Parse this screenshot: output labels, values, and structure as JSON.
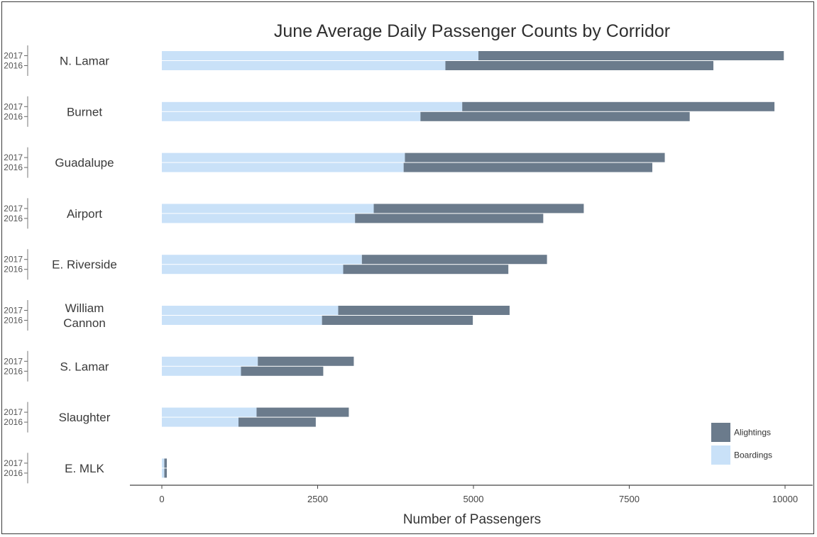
{
  "chart_data": {
    "type": "bar",
    "title": "June Average Daily Passenger Counts by Corridor",
    "xlabel": "Number of Passengers",
    "xlim": [
      0,
      10000
    ],
    "xticks": [
      "0",
      "2500",
      "5000",
      "7500",
      "10000"
    ],
    "years": [
      "2017",
      "2016"
    ],
    "legend": {
      "position": "bottom-right",
      "items": [
        {
          "name": "Alightings",
          "color": "#6b7b8c"
        },
        {
          "name": "Boardings",
          "color": "#c9e1f8"
        }
      ]
    },
    "corridors": [
      {
        "name": [
          "N. Lamar"
        ],
        "values": {
          "2017": {
            "boardings": 5080,
            "alightings": 4900
          },
          "2016": {
            "boardings": 4550,
            "alightings": 4300
          }
        }
      },
      {
        "name": [
          "Burnet"
        ],
        "values": {
          "2017": {
            "boardings": 4820,
            "alightings": 5010
          },
          "2016": {
            "boardings": 4150,
            "alightings": 4320
          }
        }
      },
      {
        "name": [
          "Guadalupe"
        ],
        "values": {
          "2017": {
            "boardings": 3900,
            "alightings": 4170
          },
          "2016": {
            "boardings": 3880,
            "alightings": 3990
          }
        }
      },
      {
        "name": [
          "Airport"
        ],
        "values": {
          "2017": {
            "boardings": 3400,
            "alightings": 3370
          },
          "2016": {
            "boardings": 3100,
            "alightings": 3020
          }
        }
      },
      {
        "name": [
          "E. Riverside"
        ],
        "values": {
          "2017": {
            "boardings": 3210,
            "alightings": 2970
          },
          "2016": {
            "boardings": 2910,
            "alightings": 2650
          }
        }
      },
      {
        "name": [
          "William",
          "Cannon"
        ],
        "values": {
          "2017": {
            "boardings": 2830,
            "alightings": 2750
          },
          "2016": {
            "boardings": 2570,
            "alightings": 2420
          }
        }
      },
      {
        "name": [
          "S. Lamar"
        ],
        "values": {
          "2017": {
            "boardings": 1540,
            "alightings": 1540
          },
          "2016": {
            "boardings": 1270,
            "alightings": 1320
          }
        }
      },
      {
        "name": [
          "Slaughter"
        ],
        "values": {
          "2017": {
            "boardings": 1520,
            "alightings": 1480
          },
          "2016": {
            "boardings": 1230,
            "alightings": 1240
          }
        }
      },
      {
        "name": [
          "E. MLK"
        ],
        "values": {
          "2017": {
            "boardings": 40,
            "alightings": 40
          },
          "2016": {
            "boardings": 40,
            "alightings": 40
          }
        }
      }
    ]
  }
}
